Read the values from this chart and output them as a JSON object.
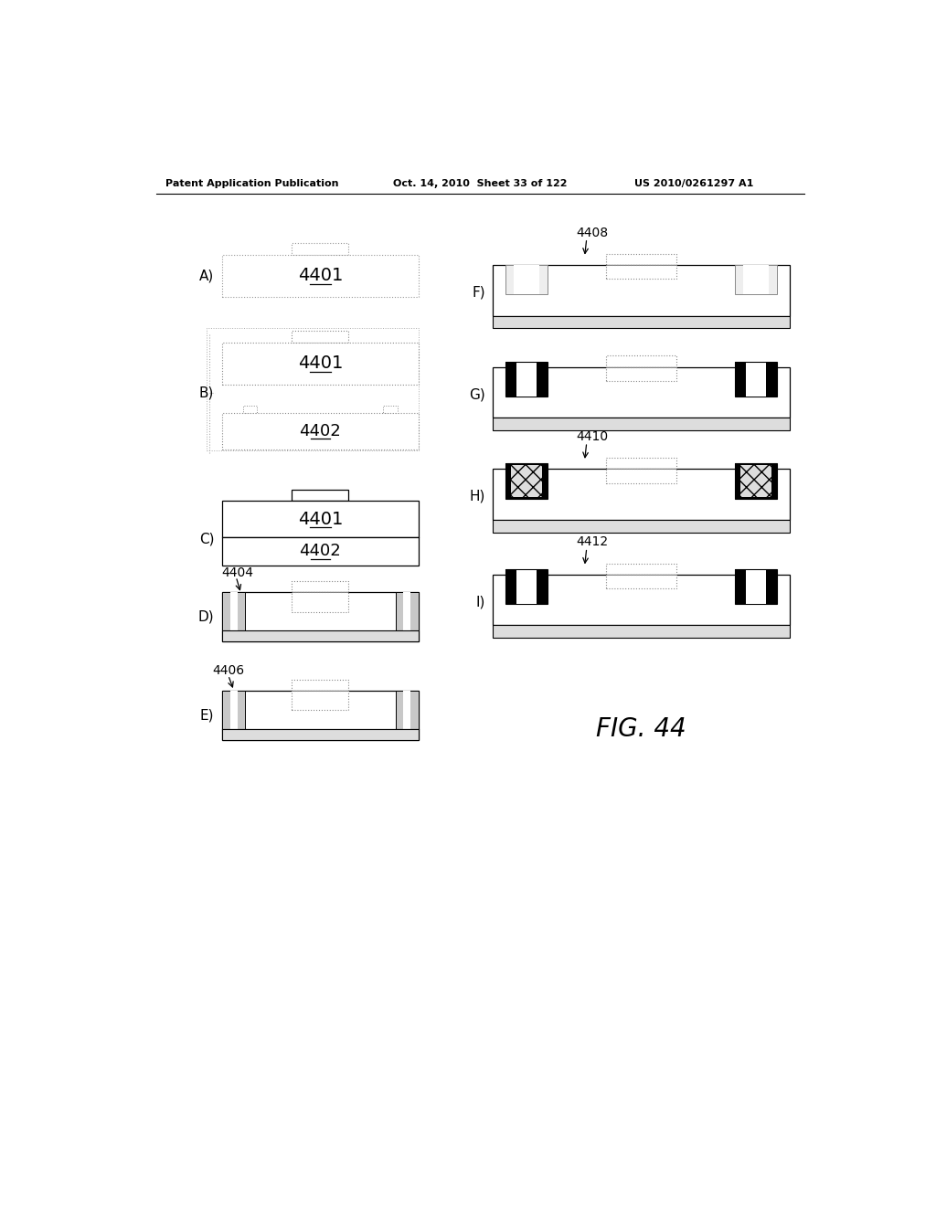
{
  "header_left": "Patent Application Publication",
  "header_mid": "Oct. 14, 2010  Sheet 33 of 122",
  "header_right": "US 2010/0261297 A1",
  "fig_label": "FIG. 44",
  "bg_color": "#ffffff"
}
